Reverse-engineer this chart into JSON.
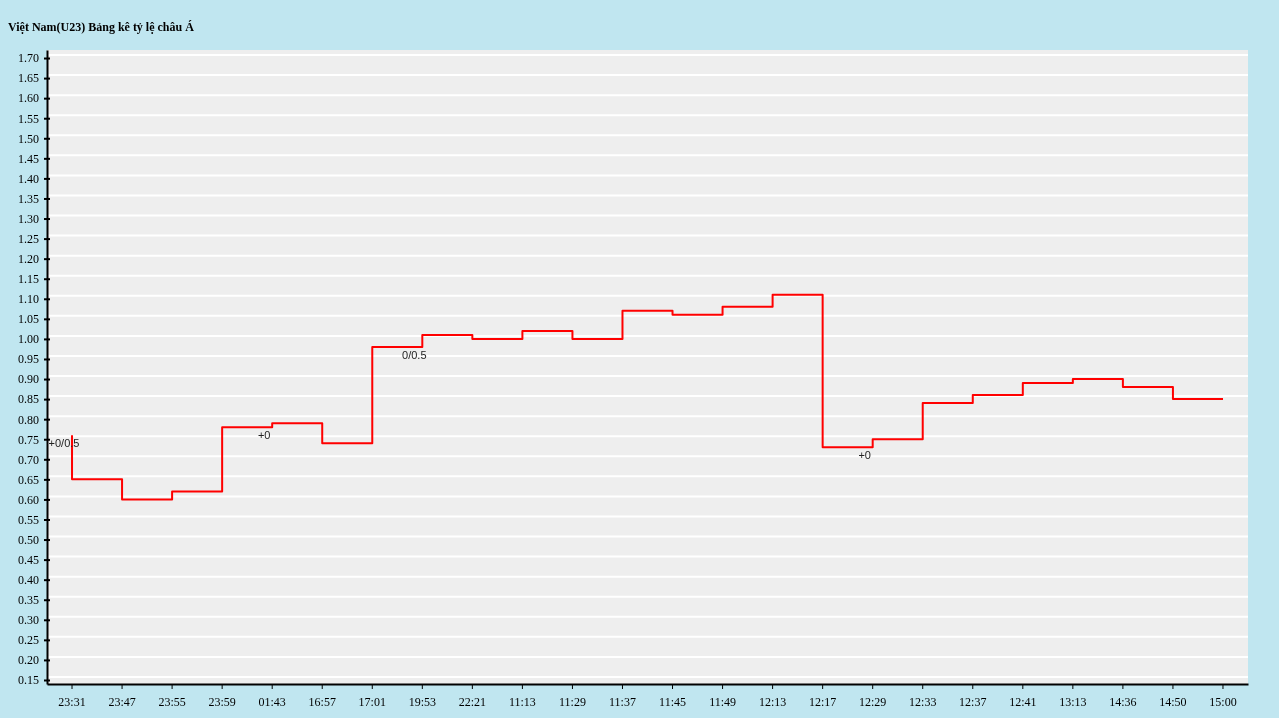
{
  "chart_data": {
    "type": "step",
    "title": "Việt Nam(U23) Bảng kê tỷ lệ châu Á",
    "categories": [
      "23:31",
      "23:47",
      "23:55",
      "23:59",
      "01:43",
      "16:57",
      "17:01",
      "19:53",
      "22:21",
      "11:13",
      "11:29",
      "11:37",
      "11:45",
      "11:49",
      "12:13",
      "12:17",
      "12:29",
      "12:33",
      "12:37",
      "12:41",
      "13:13",
      "14:36",
      "14:50",
      "15:00"
    ],
    "series": [
      {
        "color": "#ff0000",
        "values": [
          0.76,
          0.65,
          0.6,
          0.62,
          0.78,
          0.79,
          0.74,
          0.98,
          1.01,
          1.0,
          1.02,
          1.0,
          1.07,
          1.06,
          1.08,
          1.11,
          0.73,
          0.75,
          0.84,
          0.86,
          0.89,
          0.9,
          0.88,
          0.85
        ]
      }
    ],
    "ylim": [
      0.14,
      1.72
    ],
    "yticks": [
      {
        "value": 0.15,
        "label": "0.15"
      },
      {
        "value": 0.2,
        "label": "0.20"
      },
      {
        "value": 0.25,
        "label": "0.25"
      },
      {
        "value": 0.3,
        "label": "0.30"
      },
      {
        "value": 0.35,
        "label": "0.35"
      },
      {
        "value": 0.4,
        "label": "0.40"
      },
      {
        "value": 0.45,
        "label": "0.45"
      },
      {
        "value": 0.5,
        "label": "0.50"
      },
      {
        "value": 0.55,
        "label": "0.55"
      },
      {
        "value": 0.6,
        "label": "0.60"
      },
      {
        "value": 0.65,
        "label": "0.65"
      },
      {
        "value": 0.7,
        "label": "0.70"
      },
      {
        "value": 0.75,
        "label": "0.75"
      },
      {
        "value": 0.8,
        "label": "0.80"
      },
      {
        "value": 0.85,
        "label": "0.85"
      },
      {
        "value": 0.9,
        "label": "0.90"
      },
      {
        "value": 0.95,
        "label": "0.95"
      },
      {
        "value": 1.0,
        "label": "1.00"
      },
      {
        "value": 1.05,
        "label": "1.05"
      },
      {
        "value": 1.1,
        "label": "1.10"
      },
      {
        "value": 1.15,
        "label": "1.15"
      },
      {
        "value": 1.2,
        "label": "1.20"
      },
      {
        "value": 1.25,
        "label": "1.25"
      },
      {
        "value": 1.3,
        "label": "1.30"
      },
      {
        "value": 1.35,
        "label": "1.35"
      },
      {
        "value": 1.4,
        "label": "1.40"
      },
      {
        "value": 1.45,
        "label": "1.45"
      },
      {
        "value": 1.5,
        "label": "1.50"
      },
      {
        "value": 1.55,
        "label": "1.55"
      },
      {
        "value": 1.6,
        "label": "1.60"
      },
      {
        "value": 1.65,
        "label": "1.65"
      },
      {
        "value": 1.7,
        "label": "1.70"
      }
    ],
    "grid": "y",
    "marker": "none",
    "line_style": "solid",
    "annotations": [
      {
        "text": "+0/0.5",
        "x": "23:31",
        "y": 0.76
      },
      {
        "text": "+0",
        "x": "01:43",
        "y": 0.78
      },
      {
        "text": "0/0.5",
        "x": "19:53",
        "y": 0.98
      },
      {
        "text": "+0",
        "x": "12:29",
        "y": 0.73
      }
    ]
  }
}
